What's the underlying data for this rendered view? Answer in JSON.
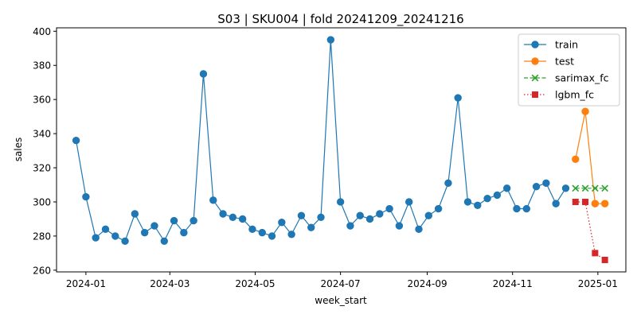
{
  "chart_data": {
    "type": "line",
    "title": "S03 | SKU004 | fold 20241209_20241216",
    "xlabel": "week_start",
    "ylabel": "sales",
    "ylim": [
      259,
      402
    ],
    "xlim": [
      "2023-12-11",
      "2025-01-21"
    ],
    "yticks": [
      260,
      280,
      300,
      320,
      340,
      360,
      380,
      400
    ],
    "xticks": [
      "2024-01",
      "2024-03",
      "2024-05",
      "2024-07",
      "2024-09",
      "2024-11",
      "2025-01"
    ],
    "xtick_dates": [
      "2024-01-01",
      "2024-03-01",
      "2024-05-01",
      "2024-07-01",
      "2024-09-01",
      "2024-11-01",
      "2025-01-01"
    ],
    "grid": false,
    "legend_position": "top-right",
    "series": [
      {
        "name": "train",
        "color": "#1f77b4",
        "marker": "circle",
        "linestyle": "solid",
        "points": [
          [
            "2023-12-25",
            336
          ],
          [
            "2024-01-01",
            303
          ],
          [
            "2024-01-08",
            279
          ],
          [
            "2024-01-15",
            284
          ],
          [
            "2024-01-22",
            280
          ],
          [
            "2024-01-29",
            277
          ],
          [
            "2024-02-05",
            293
          ],
          [
            "2024-02-12",
            282
          ],
          [
            "2024-02-19",
            286
          ],
          [
            "2024-02-26",
            277
          ],
          [
            "2024-03-04",
            289
          ],
          [
            "2024-03-11",
            282
          ],
          [
            "2024-03-18",
            289
          ],
          [
            "2024-03-25",
            375
          ],
          [
            "2024-04-01",
            301
          ],
          [
            "2024-04-08",
            293
          ],
          [
            "2024-04-15",
            291
          ],
          [
            "2024-04-22",
            290
          ],
          [
            "2024-04-29",
            284
          ],
          [
            "2024-05-06",
            282
          ],
          [
            "2024-05-13",
            280
          ],
          [
            "2024-05-20",
            288
          ],
          [
            "2024-05-27",
            281
          ],
          [
            "2024-06-03",
            292
          ],
          [
            "2024-06-10",
            285
          ],
          [
            "2024-06-17",
            291
          ],
          [
            "2024-06-24",
            395
          ],
          [
            "2024-07-01",
            300
          ],
          [
            "2024-07-08",
            286
          ],
          [
            "2024-07-15",
            292
          ],
          [
            "2024-07-22",
            290
          ],
          [
            "2024-07-29",
            293
          ],
          [
            "2024-08-05",
            296
          ],
          [
            "2024-08-12",
            286
          ],
          [
            "2024-08-19",
            300
          ],
          [
            "2024-08-26",
            284
          ],
          [
            "2024-09-02",
            292
          ],
          [
            "2024-09-09",
            296
          ],
          [
            "2024-09-16",
            311
          ],
          [
            "2024-09-23",
            361
          ],
          [
            "2024-09-30",
            300
          ],
          [
            "2024-10-07",
            298
          ],
          [
            "2024-10-14",
            302
          ],
          [
            "2024-10-21",
            304
          ],
          [
            "2024-10-28",
            308
          ],
          [
            "2024-11-04",
            296
          ],
          [
            "2024-11-11",
            296
          ],
          [
            "2024-11-18",
            309
          ],
          [
            "2024-11-25",
            311
          ],
          [
            "2024-12-02",
            299
          ],
          [
            "2024-12-09",
            308
          ]
        ]
      },
      {
        "name": "test",
        "color": "#ff7f0e",
        "marker": "circle",
        "linestyle": "solid",
        "points": [
          [
            "2024-12-16",
            325
          ],
          [
            "2024-12-23",
            353
          ],
          [
            "2024-12-30",
            299
          ],
          [
            "2025-01-06",
            299
          ]
        ]
      },
      {
        "name": "sarimax_fc",
        "color": "#2ca02c",
        "marker": "x",
        "linestyle": "dashed",
        "points": [
          [
            "2024-12-16",
            308
          ],
          [
            "2024-12-23",
            308
          ],
          [
            "2024-12-30",
            308
          ],
          [
            "2025-01-06",
            308
          ]
        ]
      },
      {
        "name": "lgbm_fc",
        "color": "#d62728",
        "marker": "square",
        "linestyle": "dotted",
        "points": [
          [
            "2024-12-16",
            300
          ],
          [
            "2024-12-23",
            300
          ],
          [
            "2024-12-30",
            270
          ],
          [
            "2025-01-06",
            266
          ]
        ]
      }
    ]
  }
}
